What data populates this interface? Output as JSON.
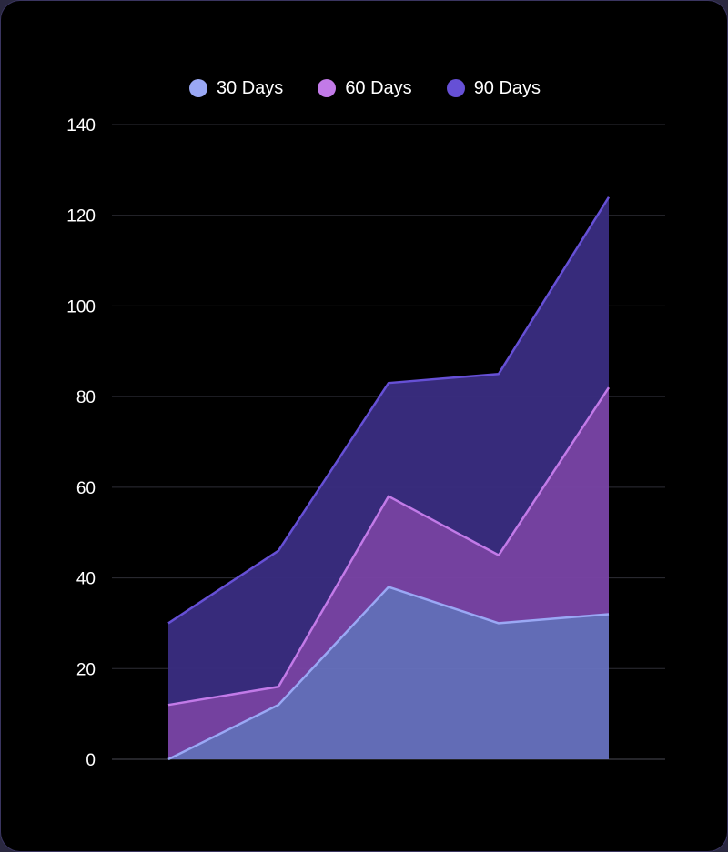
{
  "chart_data": {
    "type": "area",
    "stacked": true,
    "x": [
      1,
      2,
      3,
      4,
      5
    ],
    "series": [
      {
        "name": "30 Days",
        "values": [
          0,
          12,
          38,
          30,
          32
        ],
        "color": "#9aa8f5",
        "fill": "#6772c0"
      },
      {
        "name": "60 Days",
        "values": [
          12,
          4,
          20,
          15,
          50
        ],
        "color": "#c27ae8",
        "fill": "#7a45a8"
      },
      {
        "name": "90 Days",
        "values": [
          18,
          30,
          25,
          40,
          42
        ],
        "color": "#6650d6",
        "fill": "#3a2d82"
      }
    ],
    "ylim": [
      0,
      140
    ],
    "yticks": [
      0,
      20,
      40,
      60,
      80,
      100,
      120,
      140
    ],
    "grid": true,
    "legend_position": "top-center",
    "background": "#000000"
  }
}
